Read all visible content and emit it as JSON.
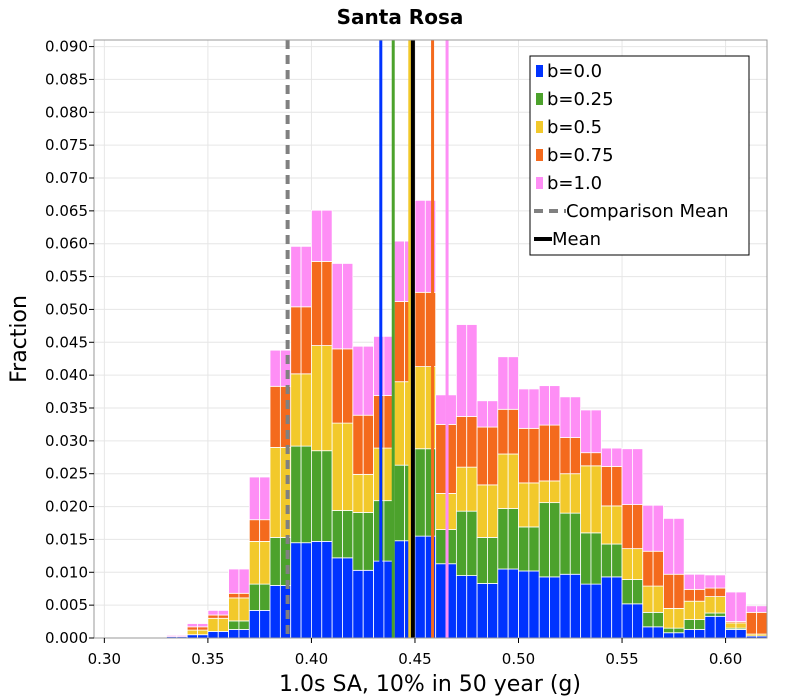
{
  "chart_data": {
    "type": "bar",
    "title": "Santa Rosa",
    "xlabel": "1.0s SA, 10% in 50 year (g)",
    "ylabel": "Fraction",
    "xlim": [
      0.295,
      0.62
    ],
    "ylim": [
      0,
      0.091
    ],
    "x_ticks": [
      "0.30",
      "0.35",
      "0.40",
      "0.45",
      "0.50",
      "0.55",
      "0.60"
    ],
    "y_ticks": [
      "0.000",
      "0.005",
      "0.010",
      "0.015",
      "0.020",
      "0.025",
      "0.030",
      "0.035",
      "0.040",
      "0.045",
      "0.050",
      "0.055",
      "0.060",
      "0.065",
      "0.070",
      "0.075",
      "0.080",
      "0.085",
      "0.090"
    ],
    "grid": true,
    "stacked": true,
    "legend_position": "top-right",
    "bin_width": 0.005,
    "bin_centers": [
      0.3025,
      0.3075,
      0.3125,
      0.3175,
      0.3225,
      0.3275,
      0.3325,
      0.3375,
      0.3425,
      0.3475,
      0.3525,
      0.3575,
      0.3625,
      0.3675,
      0.3725,
      0.3775,
      0.3825,
      0.3875,
      0.3925,
      0.3975,
      0.4025,
      0.4075,
      0.4125,
      0.4175,
      0.4225,
      0.4275,
      0.4325,
      0.4375,
      0.4425,
      0.4475,
      0.4525,
      0.4575,
      0.4625,
      0.4675,
      0.4725,
      0.4775,
      0.4825,
      0.4875,
      0.4925,
      0.4975,
      0.5025,
      0.5075,
      0.5125,
      0.5175,
      0.5225,
      0.5275,
      0.5325,
      0.5375,
      0.5425,
      0.5475,
      0.5525,
      0.5575,
      0.5625,
      0.5675,
      0.5725,
      0.5775,
      0.5825,
      0.5875,
      0.5925,
      0.5975,
      0.6025,
      0.6075,
      0.6125,
      0.6175
    ],
    "series": [
      {
        "name": "b=0.0",
        "color": "#0033ff",
        "values": [
          0,
          0,
          0,
          0,
          0,
          0,
          0.0002,
          0.0002,
          0.0005,
          0.0005,
          0.001,
          0.001,
          0.0013,
          0.0013,
          0.0042,
          0.0042,
          0.008,
          0.008,
          0.0145,
          0.0145,
          0.0147,
          0.0147,
          0.0122,
          0.0122,
          0.0103,
          0.0103,
          0.0117,
          0.0117,
          0.0148,
          0.0148,
          0.0155,
          0.0155,
          0.0113,
          0.0113,
          0.0095,
          0.0095,
          0.0083,
          0.0083,
          0.0105,
          0.0105,
          0.0102,
          0.0102,
          0.0093,
          0.0093,
          0.0097,
          0.0097,
          0.0082,
          0.0082,
          0.0093,
          0.0093,
          0.0052,
          0.0052,
          0.0017,
          0.0017,
          0.0008,
          0.0008,
          0.0013,
          0.0013,
          0.0033,
          0.0033,
          0.0013,
          0.0013,
          0.0003,
          0.0003
        ]
      },
      {
        "name": "b=0.25",
        "color": "#4ca22c",
        "values": [
          0,
          0,
          0,
          0,
          0,
          0,
          0,
          0,
          0,
          0,
          0,
          0,
          0.0013,
          0.0013,
          0.004,
          0.004,
          0.0073,
          0.0073,
          0.0147,
          0.0147,
          0.0138,
          0.0138,
          0.0072,
          0.0072,
          0.0088,
          0.0088,
          0.0092,
          0.0092,
          0.0115,
          0.0115,
          0.0133,
          0.0133,
          0.0052,
          0.0052,
          0.0098,
          0.0098,
          0.007,
          0.007,
          0.0092,
          0.0092,
          0.0067,
          0.0067,
          0.0113,
          0.0113,
          0.0093,
          0.0093,
          0.0078,
          0.0078,
          0.005,
          0.005,
          0.0037,
          0.0037,
          0.0022,
          0.0022,
          0.0007,
          0.0007,
          0.0015,
          0.0015,
          0.0005,
          0.0005,
          0.0002,
          0.0002,
          0,
          0
        ]
      },
      {
        "name": "b=0.5",
        "color": "#f2c92b",
        "values": [
          0,
          0,
          0,
          0,
          0,
          0,
          0,
          0,
          0.0007,
          0.0007,
          0.002,
          0.002,
          0.0035,
          0.0035,
          0.0065,
          0.0065,
          0.0137,
          0.0137,
          0.011,
          0.011,
          0.016,
          0.016,
          0.0133,
          0.0133,
          0.0058,
          0.0058,
          0.008,
          0.008,
          0.0127,
          0.0127,
          0.0125,
          0.0125,
          0.0055,
          0.0055,
          0.0067,
          0.0067,
          0.008,
          0.008,
          0.0083,
          0.0083,
          0.0067,
          0.0067,
          0.0033,
          0.0033,
          0.006,
          0.006,
          0.0102,
          0.0102,
          0.0058,
          0.0058,
          0.0047,
          0.0047,
          0.004,
          0.004,
          0.003,
          0.003,
          0.0028,
          0.0028,
          0.0025,
          0.0025,
          0.0008,
          0.0008,
          0.0003,
          0.0003
        ]
      },
      {
        "name": "b=0.75",
        "color": "#f46a1d",
        "values": [
          0,
          0,
          0,
          0,
          0,
          0,
          0,
          0,
          0.0005,
          0.0005,
          0.0005,
          0.0005,
          0.0007,
          0.0007,
          0.0033,
          0.0033,
          0.0093,
          0.0093,
          0.0102,
          0.0102,
          0.0128,
          0.0128,
          0.0113,
          0.0113,
          0.009,
          0.009,
          0.008,
          0.008,
          0.0122,
          0.0122,
          0.0113,
          0.0113,
          0.0105,
          0.0105,
          0.0077,
          0.0077,
          0.0088,
          0.0088,
          0.0068,
          0.0068,
          0.0083,
          0.0083,
          0.0085,
          0.0085,
          0.0055,
          0.0055,
          0.002,
          0.002,
          0.006,
          0.006,
          0.0067,
          0.0067,
          0.0053,
          0.0053,
          0.0052,
          0.0052,
          0.0018,
          0.0018,
          0.0013,
          0.0013,
          0.0002,
          0.0002,
          0.0033,
          0.0033
        ]
      },
      {
        "name": "b=1.0",
        "color": "#fe8ef5",
        "values": [
          0,
          0,
          0,
          0,
          0,
          0,
          0.0002,
          0.0002,
          0.0005,
          0.0005,
          0.0007,
          0.0007,
          0.0037,
          0.0037,
          0.0065,
          0.0065,
          0.0055,
          0.0055,
          0.0092,
          0.0092,
          0.0078,
          0.0078,
          0.013,
          0.013,
          0.0105,
          0.0105,
          0.009,
          0.009,
          0.0092,
          0.0092,
          0.014,
          0.014,
          0.0045,
          0.0045,
          0.014,
          0.014,
          0.004,
          0.004,
          0.008,
          0.008,
          0.006,
          0.006,
          0.006,
          0.006,
          0.0062,
          0.0062,
          0.0065,
          0.0065,
          0.0028,
          0.0028,
          0.0085,
          0.0085,
          0.007,
          0.007,
          0.0085,
          0.0085,
          0.0023,
          0.0023,
          0.002,
          0.002,
          0.0045,
          0.0045,
          0.001,
          0.001
        ]
      }
    ],
    "vertical_lines": [
      {
        "label": "b=0.0 mean",
        "x": 0.4335,
        "color": "#0033ff",
        "style": "solid"
      },
      {
        "label": "b=0.25 mean",
        "x": 0.4395,
        "color": "#4ca22c",
        "style": "solid"
      },
      {
        "label": "b=0.5 mean",
        "x": 0.4475,
        "color": "#f2c92b",
        "style": "solid"
      },
      {
        "label": "b=0.75 mean",
        "x": 0.4585,
        "color": "#f46a1d",
        "style": "solid"
      },
      {
        "label": "b=1.0 mean",
        "x": 0.4655,
        "color": "#fe8ef5",
        "style": "solid"
      },
      {
        "label": "Comparison Mean",
        "x": 0.3885,
        "color": "#808080",
        "style": "dashed"
      },
      {
        "label": "Mean",
        "x": 0.449,
        "color": "#000000",
        "style": "solid"
      }
    ],
    "legend": [
      {
        "label": "b=0.0",
        "color": "#0033ff",
        "kind": "box"
      },
      {
        "label": "b=0.25",
        "color": "#4ca22c",
        "kind": "box"
      },
      {
        "label": "b=0.5",
        "color": "#f2c92b",
        "kind": "box"
      },
      {
        "label": "b=0.75",
        "color": "#f46a1d",
        "kind": "box"
      },
      {
        "label": "b=1.0",
        "color": "#fe8ef5",
        "kind": "box"
      },
      {
        "label": "Comparison Mean",
        "color": "#808080",
        "kind": "dashed"
      },
      {
        "label": "Mean",
        "color": "#000000",
        "kind": "line"
      }
    ]
  }
}
